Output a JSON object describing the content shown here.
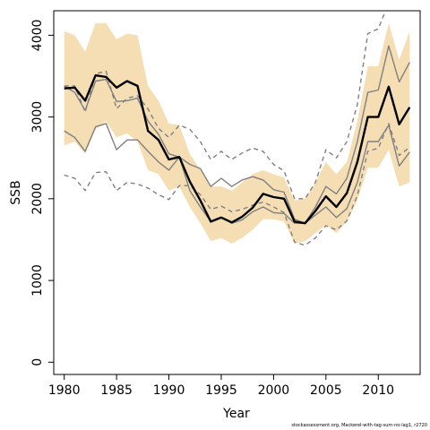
{
  "chart_data": {
    "type": "line",
    "xlabel": "Year",
    "ylabel": "SSB",
    "xlim": [
      1979,
      2014
    ],
    "ylim": [
      -150,
      4300
    ],
    "xticks": [
      "1980",
      "1985",
      "1990",
      "1995",
      "2000",
      "2005",
      "2010"
    ],
    "yticks": [
      "0",
      "1000",
      "2000",
      "3000",
      "4000"
    ],
    "grid": false,
    "legend": "none",
    "colors": {
      "band": "#f5deb3",
      "estimate": "#000000",
      "other": "#808080"
    },
    "x": [
      1980,
      1981,
      1982,
      1983,
      1984,
      1985,
      1986,
      1987,
      1988,
      1989,
      1990,
      1991,
      1992,
      1993,
      1994,
      1995,
      1996,
      1997,
      1998,
      1999,
      2000,
      2001,
      2002,
      2003,
      2004,
      2005,
      2006,
      2007,
      2008,
      2009,
      2010,
      2011,
      2012,
      2013
    ],
    "band_lower": [
      2650,
      2700,
      2550,
      2850,
      2950,
      2750,
      2800,
      2700,
      2350,
      2300,
      2100,
      2150,
      1900,
      1700,
      1480,
      1520,
      1450,
      1520,
      1620,
      1750,
      1750,
      1720,
      1450,
      1480,
      1580,
      1680,
      1580,
      1720,
      1980,
      2380,
      2380,
      2600,
      2150,
      2200
    ],
    "band_upper": [
      4050,
      4000,
      3800,
      4150,
      4150,
      3950,
      4020,
      4000,
      3380,
      3200,
      2920,
      2900,
      2550,
      2350,
      2150,
      2150,
      2100,
      2200,
      2300,
      2350,
      2300,
      2260,
      1980,
      2000,
      2200,
      2450,
      2300,
      2450,
      2950,
      3620,
      3620,
      4150,
      3700,
      4050
    ],
    "series": [
      {
        "name": "",
        "style": "solid-thick",
        "color": "#000000",
        "values": [
          3350,
          3360,
          3200,
          3510,
          3490,
          3360,
          3440,
          3380,
          2830,
          2720,
          2480,
          2510,
          2210,
          1980,
          1720,
          1770,
          1710,
          1780,
          1890,
          2060,
          2020,
          2000,
          1720,
          1700,
          1850,
          2030,
          1900,
          2070,
          2450,
          3000,
          3000,
          3370,
          2910,
          3120
        ]
      },
      {
        "name": "",
        "style": "solid",
        "color": "#808080",
        "values": [
          3380,
          3300,
          3080,
          3440,
          3460,
          3190,
          3200,
          3230,
          2950,
          2790,
          2550,
          2510,
          2420,
          2370,
          2150,
          2250,
          2150,
          2230,
          2270,
          2230,
          2110,
          2080,
          1750,
          1700,
          1900,
          2150,
          2060,
          2250,
          2700,
          3300,
          3330,
          3870,
          3430,
          3670
        ]
      },
      {
        "name": "",
        "style": "solid",
        "color": "#808080",
        "values": [
          2830,
          2750,
          2580,
          2880,
          2920,
          2600,
          2720,
          2720,
          2580,
          2450,
          2350,
          2510,
          2100,
          1900,
          1720,
          1770,
          1700,
          1740,
          1840,
          1900,
          1830,
          1820,
          1700,
          1700,
          1800,
          1900,
          1770,
          1880,
          2200,
          2700,
          2700,
          2900,
          2400,
          2570
        ]
      },
      {
        "name": "",
        "style": "dashed",
        "color": "#808080",
        "values": [
          3380,
          3380,
          3060,
          3530,
          3560,
          3100,
          3230,
          3260,
          3100,
          2860,
          2750,
          2900,
          2850,
          2700,
          2480,
          2580,
          2480,
          2560,
          2620,
          2580,
          2420,
          2340,
          2000,
          2000,
          2200,
          2600,
          2500,
          2700,
          3150,
          4020,
          4080,
          4400,
          4400,
          4400
        ]
      },
      {
        "name": "",
        "style": "dashed",
        "color": "#808080",
        "values": [
          2290,
          2250,
          2100,
          2320,
          2330,
          2100,
          2200,
          2180,
          2130,
          2050,
          1990,
          2160,
          2160,
          2050,
          1870,
          1910,
          1840,
          1870,
          1920,
          1960,
          1900,
          1830,
          1470,
          1430,
          1520,
          1670,
          1620,
          1730,
          2040,
          2580,
          2620,
          2920,
          2530,
          2630
        ]
      }
    ]
  },
  "credit": "stockassessment.org, Mackerel-with-tag-sum-no-lag1, r2720"
}
